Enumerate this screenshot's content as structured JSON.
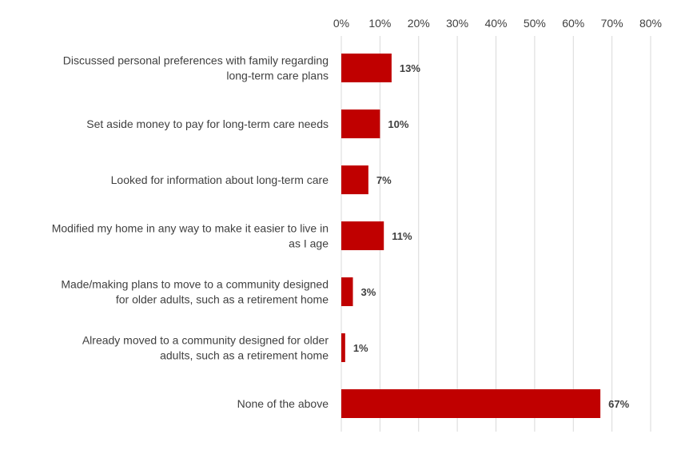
{
  "chart_data": {
    "type": "bar",
    "orientation": "horizontal",
    "categories": [
      [
        "Discussed personal preferences with family regarding",
        "long-term care plans"
      ],
      [
        "Set aside money to pay for long-term care needs"
      ],
      [
        "Looked for information about long-term care"
      ],
      [
        "Modified my home in any way to make it easier to live in",
        "as I age"
      ],
      [
        "Made/making plans to move to a community designed",
        "for older adults, such as a retirement home"
      ],
      [
        "Already moved to a community designed for older",
        "adults, such as a retirement home"
      ],
      [
        "None of the above"
      ]
    ],
    "values": [
      13,
      10,
      7,
      11,
      3,
      1,
      67
    ],
    "value_labels": [
      "13%",
      "10%",
      "7%",
      "11%",
      "3%",
      "1%",
      "67%"
    ],
    "x_ticks": [
      "0%",
      "10%",
      "20%",
      "30%",
      "40%",
      "50%",
      "60%",
      "70%",
      "80%"
    ],
    "xlim": [
      0,
      80
    ],
    "x_axis_position": "top",
    "grid": true,
    "bar_color": "#c00000",
    "grid_color": "#d9d9d9",
    "text_color": "#404040",
    "title": "",
    "xlabel": "",
    "ylabel": ""
  }
}
